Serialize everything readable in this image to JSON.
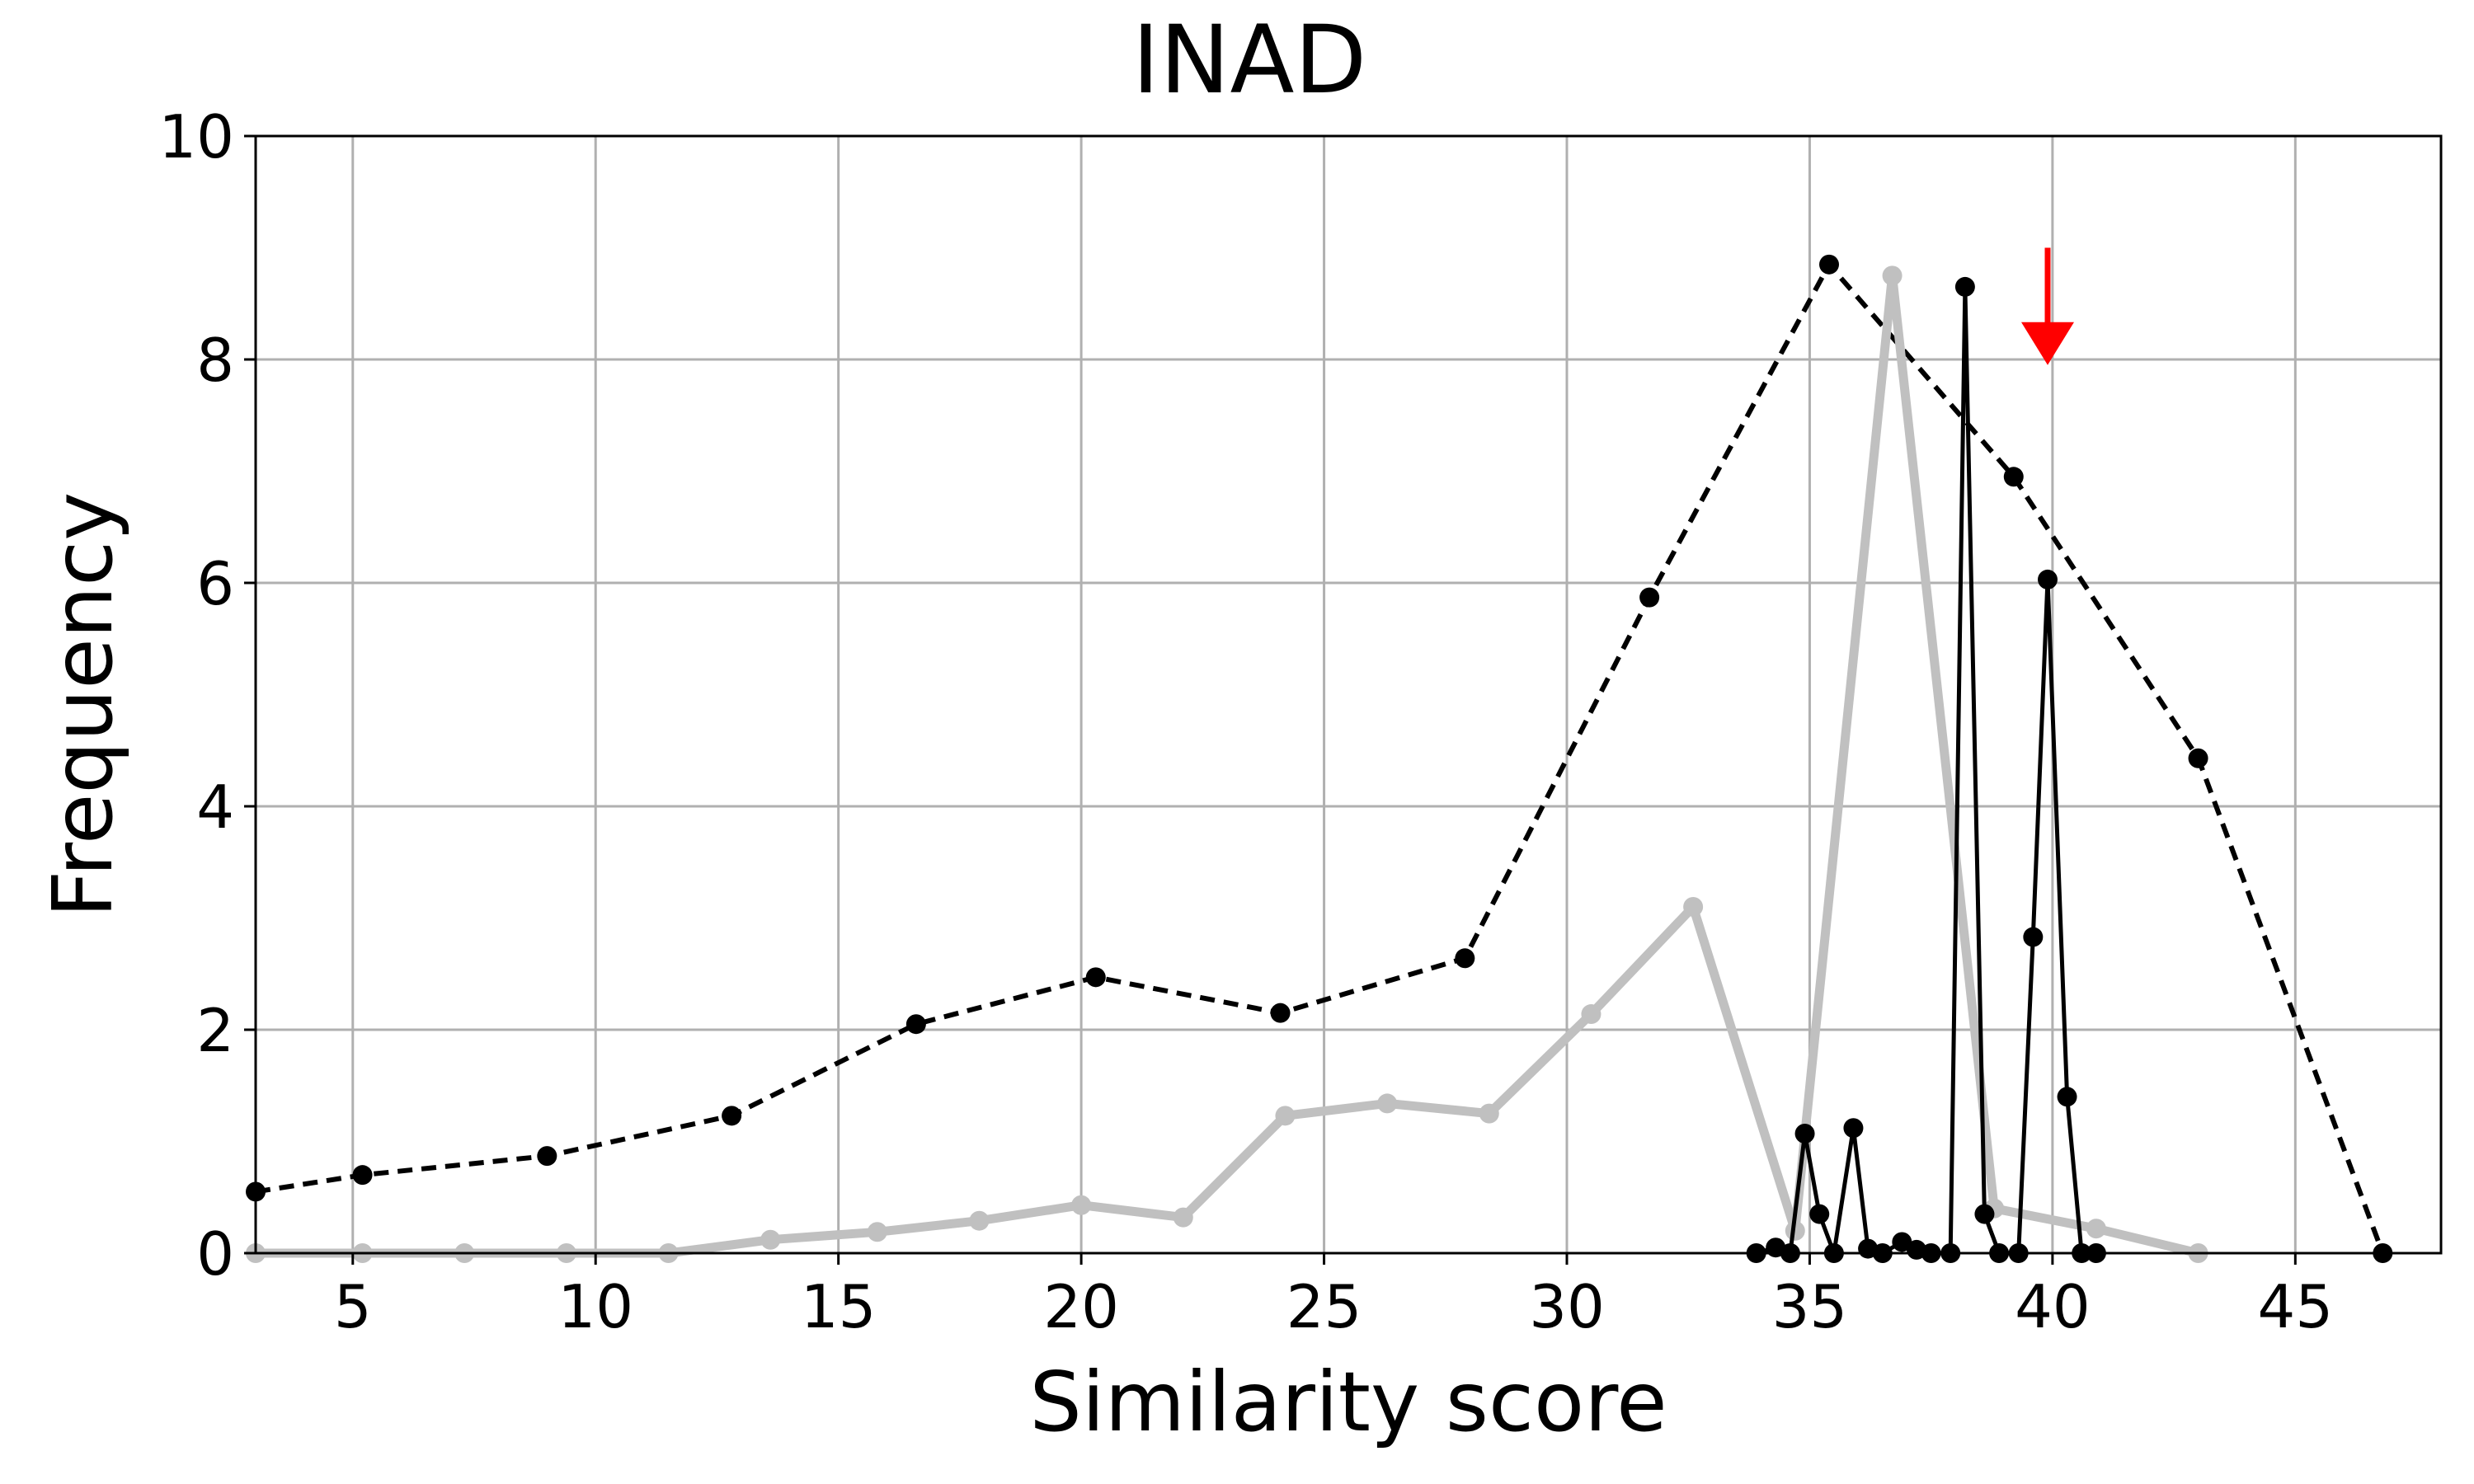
{
  "chart_data": {
    "type": "line",
    "title": "INAD",
    "xlabel": "Similarity score",
    "ylabel": "Frequency",
    "xlim": [
      3,
      48
    ],
    "ylim": [
      0,
      10
    ],
    "xticks": [
      5,
      10,
      15,
      20,
      25,
      30,
      35,
      40,
      45
    ],
    "yticks": [
      0,
      2,
      4,
      6,
      8,
      10
    ],
    "grid": true,
    "series": [
      {
        "style": "dashed",
        "color": "#000000",
        "markers": true,
        "points": [
          [
            3.0,
            0.55
          ],
          [
            5.2,
            0.7
          ],
          [
            9.0,
            0.87
          ],
          [
            12.8,
            1.23
          ],
          [
            16.6,
            2.05
          ],
          [
            20.3,
            2.47
          ],
          [
            24.1,
            2.15
          ],
          [
            27.9,
            2.64
          ],
          [
            31.7,
            5.87
          ],
          [
            35.4,
            8.85
          ],
          [
            39.2,
            6.95
          ],
          [
            43.0,
            4.43
          ],
          [
            46.8,
            0.0
          ]
        ]
      },
      {
        "style": "thick",
        "color": "#c0c0c0",
        "markers": true,
        "points": [
          [
            3.0,
            0.0
          ],
          [
            5.2,
            0.0
          ],
          [
            7.3,
            0.0
          ],
          [
            9.4,
            0.0
          ],
          [
            11.5,
            0.0
          ],
          [
            13.6,
            0.12
          ],
          [
            15.8,
            0.19
          ],
          [
            17.9,
            0.29
          ],
          [
            20.0,
            0.43
          ],
          [
            22.1,
            0.32
          ],
          [
            24.2,
            1.23
          ],
          [
            26.3,
            1.34
          ],
          [
            28.4,
            1.25
          ],
          [
            30.5,
            2.14
          ],
          [
            32.6,
            3.1
          ],
          [
            34.7,
            0.2
          ],
          [
            36.7,
            8.75
          ],
          [
            38.8,
            0.4
          ],
          [
            40.9,
            0.22
          ],
          [
            43.0,
            0.0
          ]
        ]
      },
      {
        "style": "solid",
        "color": "#000000",
        "markers": true,
        "points": [
          [
            33.9,
            0.0
          ],
          [
            34.3,
            0.05
          ],
          [
            34.6,
            0.0
          ],
          [
            34.9,
            1.07
          ],
          [
            35.2,
            0.35
          ],
          [
            35.5,
            0.0
          ],
          [
            35.9,
            1.12
          ],
          [
            36.2,
            0.04
          ],
          [
            36.5,
            0.0
          ],
          [
            36.9,
            0.1
          ],
          [
            37.2,
            0.03
          ],
          [
            37.5,
            0.0
          ],
          [
            37.9,
            0.0
          ],
          [
            38.2,
            8.65
          ],
          [
            38.6,
            0.35
          ],
          [
            38.9,
            0.0
          ],
          [
            39.3,
            0.0
          ],
          [
            39.6,
            2.83
          ],
          [
            39.9,
            6.03
          ],
          [
            40.3,
            1.4
          ],
          [
            40.6,
            0.0
          ],
          [
            40.9,
            0.0
          ]
        ]
      }
    ],
    "annotation": {
      "type": "arrow",
      "color": "#ff0000",
      "x": 39.9,
      "y_from": 9.0,
      "y_to": 7.95
    }
  }
}
